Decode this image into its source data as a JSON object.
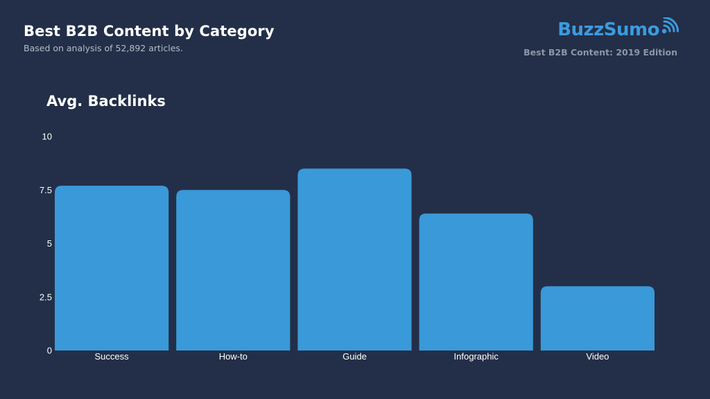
{
  "header": {
    "title": "Best B2B Content by Category",
    "subtitle": "Based on analysis of 52,892 articles."
  },
  "brand": {
    "name": "BuzzSumo",
    "edition": "Best B2B Content: 2019 Edition",
    "logo_icon": "signal-waves-icon",
    "color": "#3b9be0"
  },
  "colors": {
    "background": "#232f48",
    "bar": "#3a99d8"
  },
  "chart_data": {
    "type": "bar",
    "title": "Avg. Backlinks",
    "categories": [
      "Success",
      "How-to",
      "Guide",
      "Infographic",
      "Video"
    ],
    "values": [
      7.7,
      7.5,
      8.5,
      6.4,
      3.0
    ],
    "ylim": [
      0,
      10
    ],
    "yticks": [
      "0",
      "2.5",
      "5",
      "7.5",
      "10"
    ],
    "ytick_values": [
      0,
      2.5,
      5,
      7.5,
      10
    ],
    "grid": false,
    "legend": "none"
  }
}
